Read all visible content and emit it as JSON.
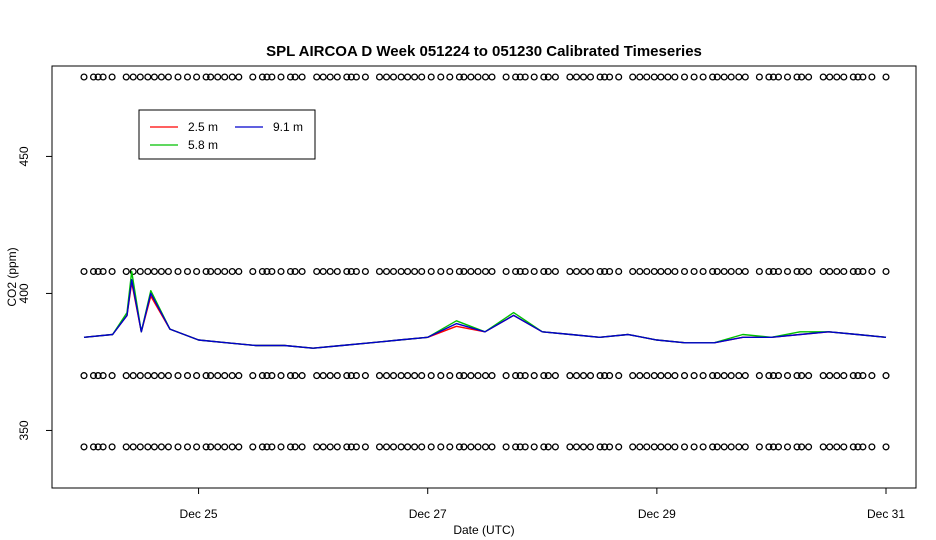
{
  "chart_data": {
    "type": "line",
    "title": "SPL AIRCOA D  Week 051224 to 051230  Calibrated Timeseries",
    "xlabel": "Date (UTC)",
    "ylabel": "CO2 (ppm)",
    "xlim": [
      "2005-12-24",
      "2005-12-31"
    ],
    "ylim": [
      329,
      483
    ],
    "x_ticks": [
      {
        "date": "2005-12-25",
        "label": "Dec 25"
      },
      {
        "date": "2005-12-27",
        "label": "Dec 27"
      },
      {
        "date": "2005-12-29",
        "label": "Dec 29"
      },
      {
        "date": "2005-12-31",
        "label": "Dec 31"
      }
    ],
    "y_ticks": [
      {
        "value": 350,
        "label": "350"
      },
      {
        "value": 400,
        "label": "400"
      },
      {
        "value": 450,
        "label": "450"
      }
    ],
    "grid": false,
    "legend_position": "top-left",
    "series": [
      {
        "name": "2.5 m",
        "color": "#ff0000",
        "x": [
          "2005-12-24",
          "2005-12-24 06:00",
          "2005-12-24 09:00",
          "2005-12-24 10:00",
          "2005-12-24 12:00",
          "2005-12-24 14:00",
          "2005-12-24 18:00",
          "2005-12-25",
          "2005-12-25 06:00",
          "2005-12-25 12:00",
          "2005-12-25 18:00",
          "2005-12-26",
          "2005-12-26 06:00",
          "2005-12-26 12:00",
          "2005-12-26 18:00",
          "2005-12-27",
          "2005-12-27 06:00",
          "2005-12-27 12:00",
          "2005-12-27 18:00",
          "2005-12-28",
          "2005-12-28 06:00",
          "2005-12-28 12:00",
          "2005-12-28 18:00",
          "2005-12-29",
          "2005-12-29 06:00",
          "2005-12-29 12:00",
          "2005-12-29 18:00",
          "2005-12-30",
          "2005-12-30 06:00",
          "2005-12-30 12:00",
          "2005-12-30 18:00",
          "2005-12-31"
        ],
        "y": [
          384,
          385,
          392,
          404,
          386,
          399,
          387,
          383,
          382,
          381,
          381,
          380,
          381,
          382,
          383,
          384,
          388,
          386,
          392,
          386,
          385,
          384,
          385,
          383,
          382,
          382,
          384,
          384,
          385,
          386,
          385,
          384
        ]
      },
      {
        "name": "5.8 m",
        "color": "#00c000",
        "x": [
          "2005-12-24",
          "2005-12-24 06:00",
          "2005-12-24 09:00",
          "2005-12-24 10:00",
          "2005-12-24 12:00",
          "2005-12-24 14:00",
          "2005-12-24 18:00",
          "2005-12-25",
          "2005-12-25 06:00",
          "2005-12-25 12:00",
          "2005-12-25 18:00",
          "2005-12-26",
          "2005-12-26 06:00",
          "2005-12-26 12:00",
          "2005-12-26 18:00",
          "2005-12-27",
          "2005-12-27 06:00",
          "2005-12-27 12:00",
          "2005-12-27 18:00",
          "2005-12-28",
          "2005-12-28 06:00",
          "2005-12-28 12:00",
          "2005-12-28 18:00",
          "2005-12-29",
          "2005-12-29 06:00",
          "2005-12-29 12:00",
          "2005-12-29 18:00",
          "2005-12-30",
          "2005-12-30 06:00",
          "2005-12-30 12:00",
          "2005-12-30 18:00",
          "2005-12-31"
        ],
        "y": [
          384,
          385,
          393,
          408,
          386,
          401,
          387,
          383,
          382,
          381,
          381,
          380,
          381,
          382,
          383,
          384,
          390,
          386,
          393,
          386,
          385,
          384,
          385,
          383,
          382,
          382,
          385,
          384,
          386,
          386,
          385,
          384
        ]
      },
      {
        "name": "9.1 m",
        "color": "#0000cc",
        "x": [
          "2005-12-24",
          "2005-12-24 06:00",
          "2005-12-24 09:00",
          "2005-12-24 10:00",
          "2005-12-24 12:00",
          "2005-12-24 14:00",
          "2005-12-24 18:00",
          "2005-12-25",
          "2005-12-25 06:00",
          "2005-12-25 12:00",
          "2005-12-25 18:00",
          "2005-12-26",
          "2005-12-26 06:00",
          "2005-12-26 12:00",
          "2005-12-26 18:00",
          "2005-12-27",
          "2005-12-27 06:00",
          "2005-12-27 12:00",
          "2005-12-27 18:00",
          "2005-12-28",
          "2005-12-28 06:00",
          "2005-12-28 12:00",
          "2005-12-28 18:00",
          "2005-12-29",
          "2005-12-29 06:00",
          "2005-12-29 12:00",
          "2005-12-29 18:00",
          "2005-12-30",
          "2005-12-30 06:00",
          "2005-12-30 12:00",
          "2005-12-30 18:00",
          "2005-12-31"
        ],
        "y": [
          384,
          385,
          392,
          405,
          386,
          400,
          387,
          383,
          382,
          381,
          381,
          380,
          381,
          382,
          383,
          384,
          389,
          386,
          392,
          386,
          385,
          384,
          385,
          383,
          382,
          382,
          384,
          384,
          385,
          386,
          385,
          384
        ]
      }
    ],
    "marker_rows": [
      {
        "name": "row-479",
        "y": 479
      },
      {
        "name": "row-408",
        "y": 408
      },
      {
        "name": "row-370",
        "y": 370
      },
      {
        "name": "row-344",
        "y": 344
      }
    ]
  }
}
